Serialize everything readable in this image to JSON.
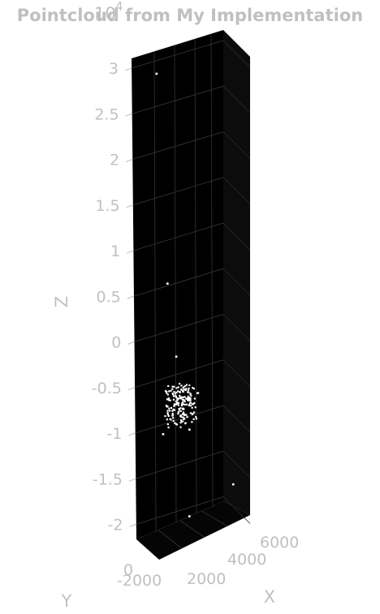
{
  "chart_data": {
    "type": "scatter",
    "title": "Pointcloud from My Implementation",
    "xlabel": "X",
    "ylabel": "Y",
    "zlabel": "Z",
    "z_exponent_label": "10",
    "z_exponent_power": "4",
    "zlim": [
      -2.15,
      3.2
    ],
    "z_ticks": [
      "3",
      "2.5",
      "2",
      "1.5",
      "1",
      "0.5",
      "0",
      "-0.5",
      "-1",
      "-1.5",
      "-2"
    ],
    "x_ticks": [
      "2000",
      "4000",
      "6000"
    ],
    "y_ticks": [
      "-2000",
      "0"
    ],
    "background": "#000000",
    "point_color": "#ffffff",
    "label_color": "#c0c0c0",
    "grid": true,
    "outlier_points": [
      {
        "x": -500,
        "y": 0,
        "z": 2.95
      },
      {
        "x": 0,
        "y": 0,
        "z": 0.65
      },
      {
        "x": 3000,
        "y": 0,
        "z": -1.55
      },
      {
        "x": 1000,
        "y": 0,
        "z": -1.9
      },
      {
        "x": 1000,
        "y": 0,
        "z": -0.95
      },
      {
        "x": -200,
        "y": 0,
        "z": -1.0
      },
      {
        "x": 400,
        "y": 0,
        "z": -0.15
      }
    ]
  }
}
